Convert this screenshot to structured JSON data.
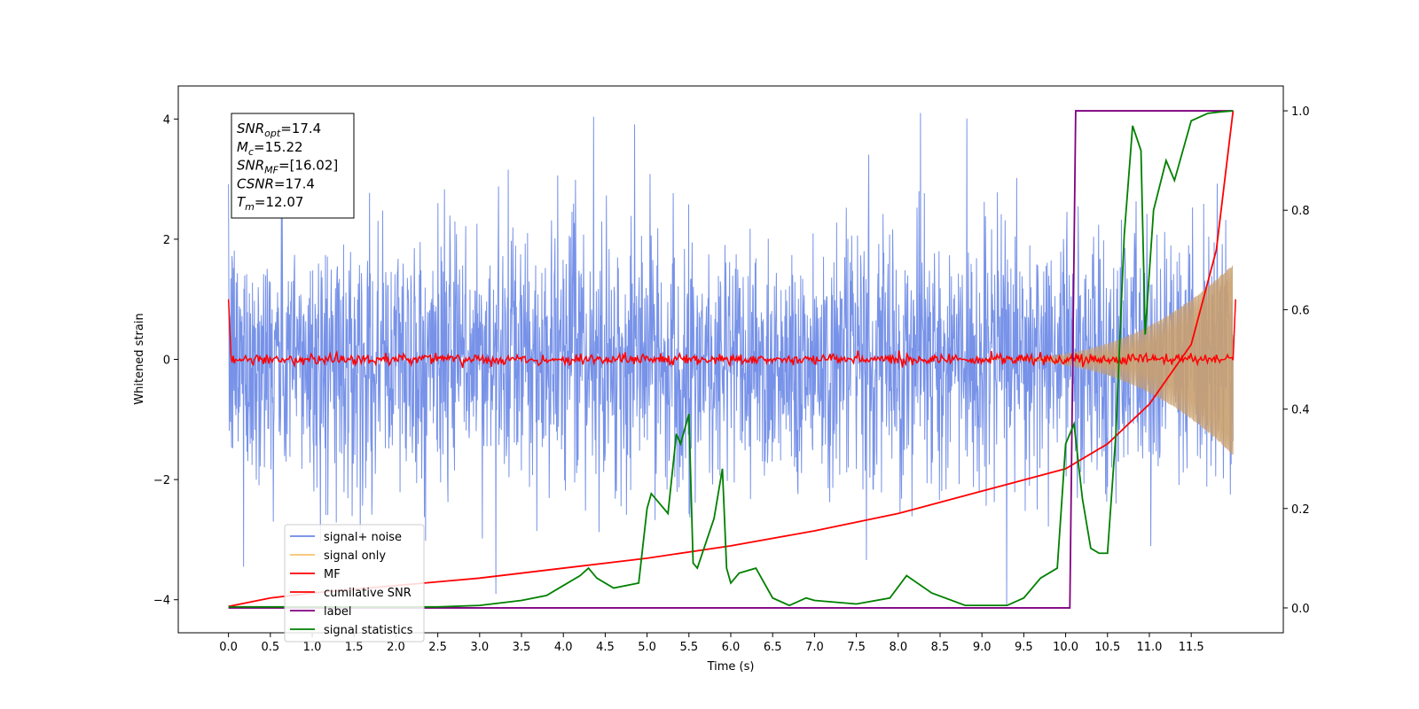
{
  "chart_data": {
    "type": "line",
    "xlabel": "Time (s)",
    "ylabel": "Whitened strain",
    "xlim": [
      -0.6,
      12.6
    ],
    "ylim_left": [
      -4.55,
      4.55
    ],
    "ylim_right": [
      -0.05,
      1.05
    ],
    "x_ticks": [
      "0.0",
      "0.5",
      "1.0",
      "1.5",
      "2.0",
      "2.5",
      "3.0",
      "3.5",
      "4.0",
      "4.5",
      "5.0",
      "5.5",
      "6.0",
      "6.5",
      "7.0",
      "7.5",
      "8.0",
      "8.5",
      "9.0",
      "9.5",
      "10.0",
      "10.5",
      "11.0",
      "11.5"
    ],
    "y_ticks_left": [
      "4",
      "2",
      "0",
      "−2",
      "−4"
    ],
    "y_ticks_right": [
      "1.0",
      "0.8",
      "0.6",
      "0.4",
      "0.2",
      "0.0"
    ],
    "legend_position": "lower left",
    "series": [
      {
        "name": "signal+ noise",
        "color": "#6b89e6",
        "axis": "left",
        "style": "noise band, approx ±2.3 with spikes to ±4"
      },
      {
        "name": "signal only",
        "color": "#f5c26b",
        "axis": "left",
        "style": "chirp, amplitude grows from ~0 at 10.0 s to ~1.6 at 12.0 s"
      },
      {
        "name": "MF",
        "color": "#ff0000",
        "axis": "left",
        "x": [
          0.0,
          0.03,
          12.0,
          12.03
        ],
        "y": [
          1.0,
          0.05,
          0.0,
          1.0
        ],
        "style": "noisy around 0"
      },
      {
        "name": "cumilative SNR",
        "color": "#ff0000",
        "axis": "right",
        "x": [
          0.0,
          0.5,
          1.0,
          2.0,
          3.0,
          4.0,
          5.0,
          6.0,
          7.0,
          8.0,
          9.0,
          10.0,
          10.5,
          11.0,
          11.5,
          11.8,
          12.0
        ],
        "y": [
          0.003,
          0.02,
          0.03,
          0.045,
          0.06,
          0.08,
          0.1,
          0.125,
          0.155,
          0.19,
          0.235,
          0.28,
          0.33,
          0.41,
          0.53,
          0.72,
          1.0
        ]
      },
      {
        "name": "label",
        "color": "#800080",
        "axis": "right",
        "x": [
          0.0,
          10.05,
          10.12,
          12.0
        ],
        "y": [
          0.0,
          0.0,
          1.0,
          1.0
        ]
      },
      {
        "name": "signal statistics",
        "color": "#008000",
        "axis": "right",
        "x": [
          0.0,
          2.5,
          3.0,
          3.5,
          3.8,
          4.0,
          4.2,
          4.3,
          4.4,
          4.6,
          4.9,
          5.0,
          5.05,
          5.15,
          5.25,
          5.35,
          5.4,
          5.5,
          5.55,
          5.6,
          5.7,
          5.8,
          5.9,
          5.95,
          6.0,
          6.1,
          6.3,
          6.5,
          6.7,
          6.9,
          7.0,
          7.5,
          7.9,
          8.1,
          8.4,
          8.8,
          9.3,
          9.5,
          9.7,
          9.9,
          10.0,
          10.1,
          10.2,
          10.3,
          10.4,
          10.5,
          10.6,
          10.7,
          10.8,
          10.9,
          10.95,
          11.05,
          11.2,
          11.3,
          11.5,
          11.7,
          11.85,
          12.0
        ],
        "y": [
          0.002,
          0.002,
          0.005,
          0.015,
          0.025,
          0.045,
          0.065,
          0.08,
          0.06,
          0.04,
          0.05,
          0.2,
          0.23,
          0.21,
          0.19,
          0.35,
          0.33,
          0.39,
          0.09,
          0.08,
          0.13,
          0.18,
          0.28,
          0.08,
          0.05,
          0.07,
          0.08,
          0.02,
          0.005,
          0.02,
          0.015,
          0.008,
          0.02,
          0.065,
          0.03,
          0.005,
          0.005,
          0.02,
          0.06,
          0.08,
          0.33,
          0.37,
          0.22,
          0.12,
          0.11,
          0.11,
          0.35,
          0.75,
          0.97,
          0.92,
          0.55,
          0.8,
          0.9,
          0.86,
          0.98,
          0.995,
          0.998,
          1.0
        ]
      }
    ],
    "annotation": {
      "lines": [
        {
          "base": "SNR",
          "sub": "opt",
          "value": "=17.4"
        },
        {
          "base": "M",
          "sub": "c",
          "value": "=15.22"
        },
        {
          "base": "SNR",
          "sub": "MF",
          "value": "=[16.02]"
        },
        {
          "base": "CSNR",
          "sub": "",
          "value": "=17.4"
        },
        {
          "base": "T",
          "sub": "m",
          "value": "=12.07"
        }
      ]
    }
  }
}
